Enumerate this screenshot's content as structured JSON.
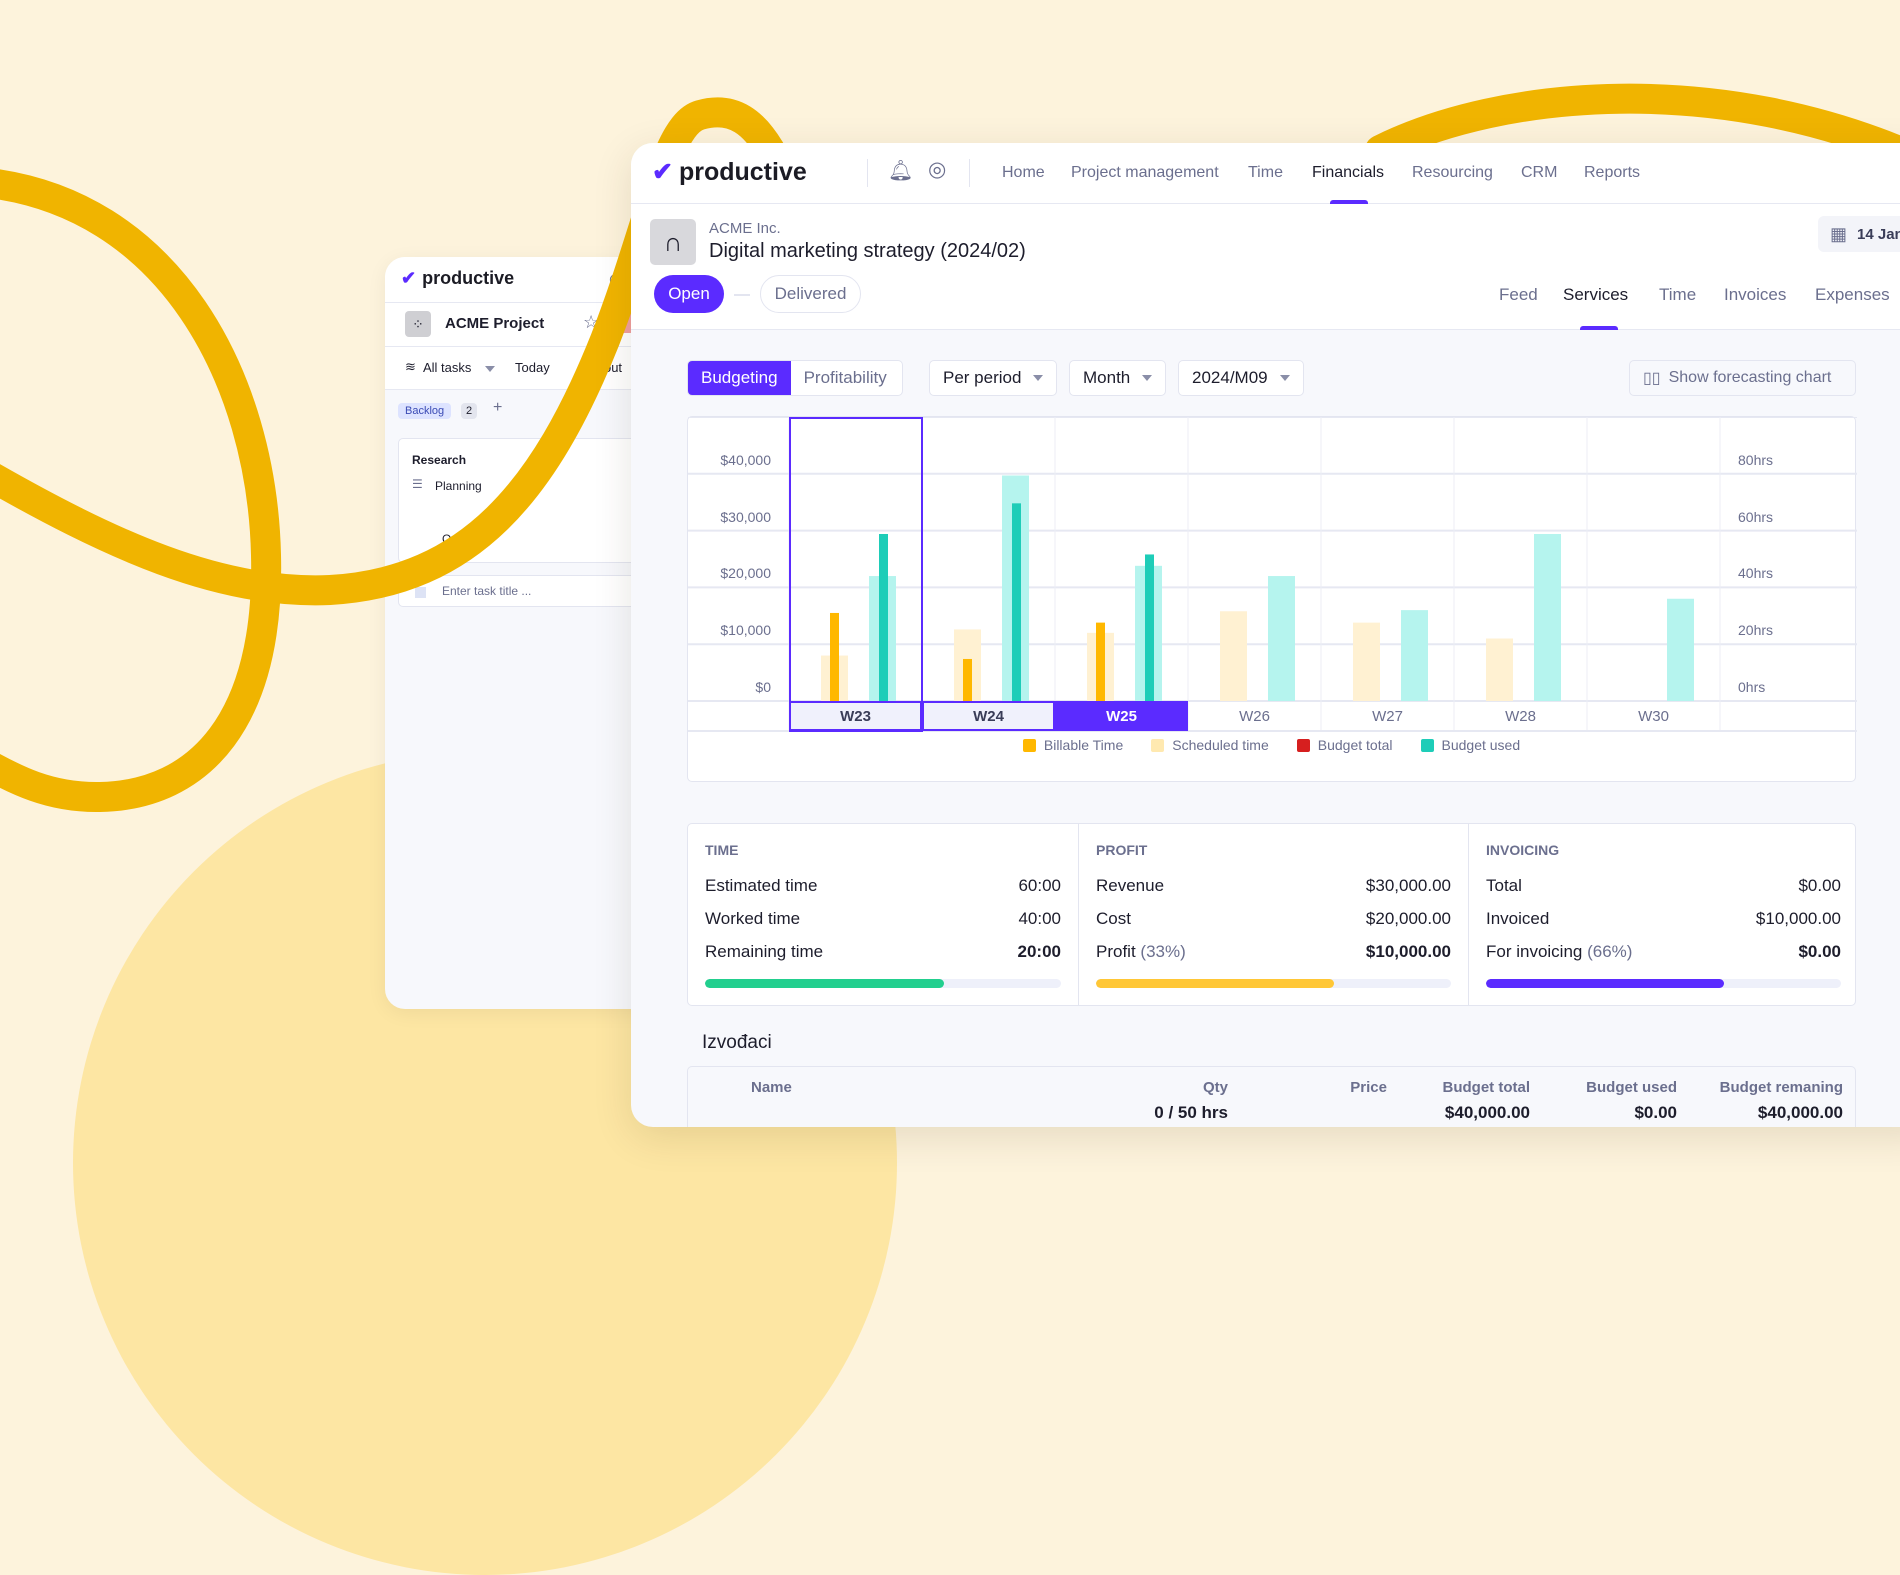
{
  "colors": {
    "brand": "#5b2bff",
    "billable": "#ffb800",
    "scheduled": "#fff1d2",
    "budget_total": "#d61f1f",
    "budget_used": "#1ecdb8",
    "budget_used_light": "#b5f4ee",
    "time_bar": "#22cf8e",
    "profit_bar": "#ffc736",
    "invoicing_bar": "#5b2bff",
    "swirl": "#f0b400"
  },
  "back_window": {
    "logo": "productive",
    "project": "ACME Project",
    "toolbar": {
      "all_tasks": "All tasks",
      "today": "Today",
      "layout": "Layout"
    },
    "column": {
      "label": "Backlog",
      "count": "2"
    },
    "task_card": {
      "title": "Research",
      "subtask": "Planning",
      "date": "Oct 11"
    },
    "new_task_placeholder": "Enter task title ..."
  },
  "nav": {
    "logo": "productive",
    "items": [
      "Home",
      "Project management",
      "Time",
      "Financials",
      "Resourcing",
      "CRM",
      "Reports"
    ],
    "active": "Financials"
  },
  "header": {
    "client": "ACME Inc.",
    "title": "Digital marketing strategy (2024/02)",
    "date": "14 Jan",
    "status": {
      "current": "Open",
      "next": "Delivered"
    },
    "tabs": [
      "Feed",
      "Services",
      "Time",
      "Invoices",
      "Expenses"
    ],
    "active_tab": "Services"
  },
  "toolbar": {
    "budgeting": "Budgeting",
    "profitability": "Profitability",
    "period": "Per period",
    "granularity": "Month",
    "month": "2024/M09",
    "forecast": "Show forecasting chart"
  },
  "chart_data": {
    "type": "bar",
    "categories": [
      "W23",
      "W24",
      "W25",
      "W26",
      "W27",
      "W28",
      "W30"
    ],
    "selected_categories": [
      "W23",
      "W24",
      "W25"
    ],
    "highlighted_category": "W25",
    "y_left": {
      "ticks": [
        "$0",
        "$10,000",
        "$20,000",
        "$30,000",
        "$40,000"
      ],
      "range": [
        0,
        50000
      ]
    },
    "y_right": {
      "ticks": [
        "0hrs",
        "20hrs",
        "40hrs",
        "60hrs",
        "80hrs"
      ],
      "range": [
        0,
        100
      ]
    },
    "grid": true,
    "legend_position": "bottom",
    "legend": [
      "Billable Time",
      "Scheduled time",
      "Budget total",
      "Budget used"
    ],
    "series": [
      {
        "name": "Billable Time",
        "values": [
          15500,
          7400,
          13800,
          null,
          null,
          null,
          null
        ]
      },
      {
        "name": "Scheduled time",
        "values": [
          8000,
          12600,
          12000,
          15800,
          13800,
          11000,
          null
        ]
      },
      {
        "name": "Budget total",
        "values": [
          null,
          null,
          null,
          null,
          null,
          null,
          null
        ]
      },
      {
        "name": "Budget used",
        "values": [
          29400,
          34800,
          25800,
          null,
          null,
          null,
          null
        ]
      },
      {
        "values": [
          22000,
          39700,
          23800,
          22000,
          16000,
          29400,
          18000
        ]
      }
    ]
  },
  "stats": [
    {
      "title": "TIME",
      "rows": [
        {
          "label": "Estimated time",
          "value": "60:00"
        },
        {
          "label": "Worked time",
          "value": "40:00"
        },
        {
          "label": "Remaining time",
          "pct": "",
          "value": "20:00"
        }
      ],
      "progress": 67
    },
    {
      "title": "PROFIT",
      "rows": [
        {
          "label": "Revenue",
          "value": "$30,000.00"
        },
        {
          "label": "Cost",
          "value": "$20,000.00"
        },
        {
          "label": "Profit",
          "pct": "(33%)",
          "value": "$10,000.00"
        }
      ],
      "progress": 67
    },
    {
      "title": "INVOICING",
      "rows": [
        {
          "label": "Total",
          "value": "$0.00"
        },
        {
          "label": "Invoiced",
          "value": "$10,000.00"
        },
        {
          "label": "For invoicing",
          "pct": "(66%)",
          "value": "$0.00"
        }
      ],
      "progress": 67
    }
  ],
  "section": {
    "title": "Izvođaci",
    "columns": [
      "Name",
      "Qty",
      "Price",
      "Budget total",
      "Budget used",
      "Budget remaning"
    ],
    "row": {
      "name": "",
      "qty": "0 / 50 hrs",
      "price": "",
      "budget_total": "$40,000.00",
      "budget_used": "$0.00",
      "budget_remaining": "$40,000.00"
    }
  }
}
